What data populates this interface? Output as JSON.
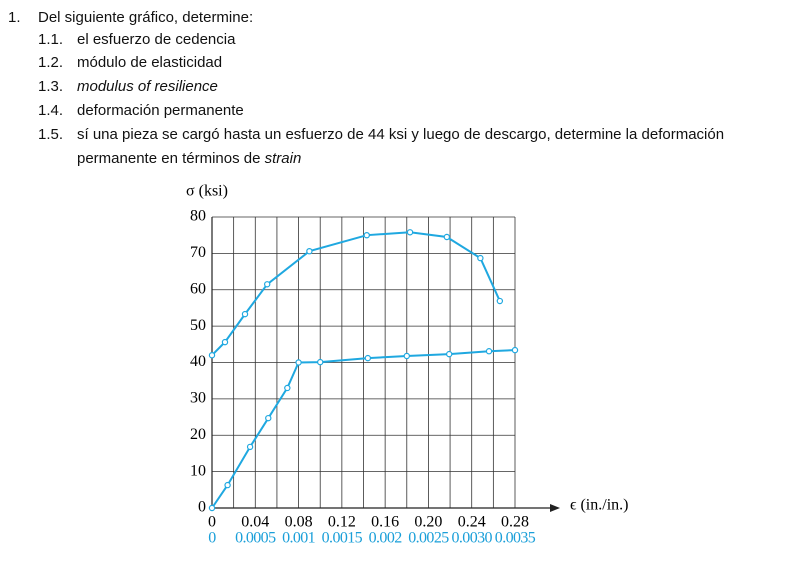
{
  "question": {
    "number": "1.",
    "text": "Del siguiente gráfico, determine:",
    "items": [
      {
        "number": "1.1.",
        "text": "el esfuerzo de cedencia"
      },
      {
        "number": "1.2.",
        "text": "módulo de elasticidad"
      },
      {
        "number": "1.3.",
        "text_italic": "modulus of resilience"
      },
      {
        "number": "1.4.",
        "text": "deformación permanente"
      },
      {
        "number": "1.5.",
        "text": "sí una pieza se cargó hasta un esfuerzo de 44 ksi y luego de descargo, determine la deformación permanente en términos de",
        "text_italic": "strain"
      }
    ]
  },
  "chart_data": {
    "type": "line",
    "y_label": "σ (ksi)",
    "x_label": "ϵ (in./in.)",
    "xlim": [
      0,
      0.28
    ],
    "x2lim": [
      0,
      0.0035
    ],
    "ylim": [
      0,
      80
    ],
    "xticks": [
      0,
      0.04,
      0.08,
      0.12,
      0.16,
      {
        "value": 0.2,
        "label": "0.20"
      },
      0.24,
      0.28
    ],
    "x2ticks": [
      0,
      0.0005,
      0.001,
      0.0015,
      0.002,
      0.0025,
      {
        "value": 0.003,
        "label": "0.0030"
      },
      0.0035
    ],
    "x2_color": "#1a9fd9",
    "yticks": [
      0,
      10,
      20,
      30,
      40,
      50,
      60,
      70,
      80
    ],
    "xgrid": [
      0,
      0.02,
      0.04,
      0.06,
      0.08,
      0.1,
      0.12,
      0.14,
      0.16,
      0.18,
      0.2,
      0.22,
      0.24,
      0.26,
      0.28
    ],
    "grid": true,
    "series": [
      {
        "color": "#1fa8e0",
        "x": [
          0,
          0.012,
          0.0305,
          0.051,
          0.09,
          0.143,
          0.183,
          0.217,
          0.248,
          0.266
        ],
        "values": [
          42,
          45.6,
          53.3,
          61.5,
          70.6,
          75,
          75.8,
          74.5,
          68.7,
          56.9
        ]
      },
      {
        "color": "#1fa8e0",
        "axis": "x2",
        "x": [
          0,
          0.00018,
          0.00044,
          0.00065,
          0.00087,
          0.001,
          0.00125,
          0.0018,
          0.00225,
          0.00274,
          0.0032,
          0.0035
        ],
        "values": [
          0,
          6.3,
          16.8,
          24.7,
          33,
          40,
          40.1,
          41.2,
          41.8,
          42.3,
          43.1,
          43.4
        ]
      }
    ]
  }
}
